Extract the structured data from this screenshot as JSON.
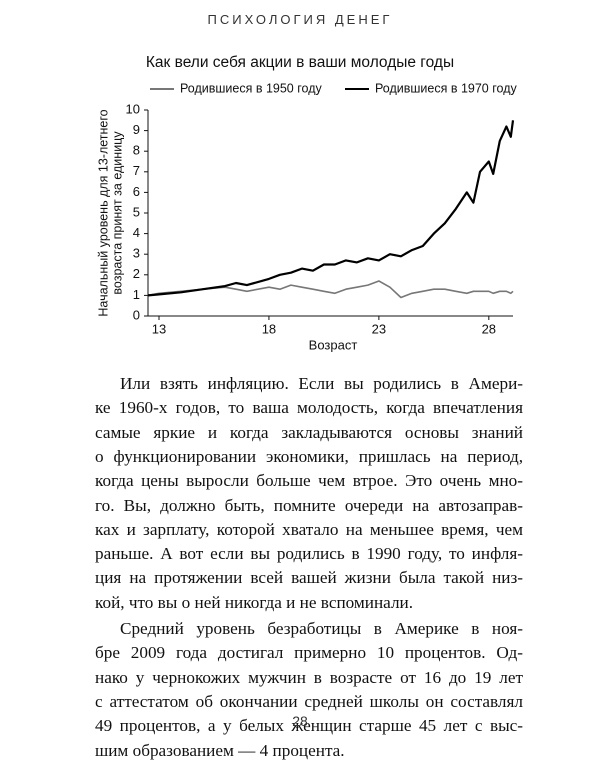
{
  "header": {
    "title": "ПСИХОЛОГИЯ ДЕНЕГ"
  },
  "chart_data": {
    "type": "line",
    "title": "Как вели себя акции в ваши молодые годы",
    "xlabel": "Возраст",
    "ylabel": [
      "Начальный уровень для 13-летнего",
      "возраста принят за единицу"
    ],
    "x": [
      12.5,
      13,
      14,
      15,
      16,
      16.5,
      17,
      18,
      18.5,
      19,
      19.5,
      20,
      20.5,
      21,
      21.5,
      22,
      22.5,
      23,
      23.5,
      24,
      24.5,
      25,
      25.5,
      26,
      26.5,
      27,
      27.3,
      27.6,
      28,
      28.2,
      28.5,
      28.8,
      29.0,
      29.1
    ],
    "series": [
      {
        "name": "Родившиеся в 1950 году",
        "color": "#777777",
        "values": [
          1.0,
          1.1,
          1.2,
          1.3,
          1.4,
          1.3,
          1.2,
          1.4,
          1.3,
          1.5,
          1.4,
          1.3,
          1.2,
          1.1,
          1.3,
          1.4,
          1.5,
          1.7,
          1.4,
          0.9,
          1.1,
          1.2,
          1.3,
          1.3,
          1.2,
          1.1,
          1.2,
          1.2,
          1.2,
          1.1,
          1.2,
          1.2,
          1.1,
          1.2
        ]
      },
      {
        "name": "Родившиеся в 1970 году",
        "color": "#000000",
        "values": [
          1.0,
          1.05,
          1.15,
          1.3,
          1.45,
          1.6,
          1.5,
          1.8,
          2.0,
          2.1,
          2.3,
          2.2,
          2.5,
          2.5,
          2.7,
          2.6,
          2.8,
          2.7,
          3.0,
          2.9,
          3.2,
          3.4,
          4.0,
          4.5,
          5.2,
          6.0,
          5.5,
          7.0,
          7.5,
          6.9,
          8.5,
          9.2,
          8.7,
          9.5
        ]
      }
    ],
    "xlim": [
      12.5,
      29.1
    ],
    "xticks": [
      13,
      18,
      23,
      28
    ],
    "ylim": [
      0,
      10
    ],
    "yticks": [
      0,
      1,
      2,
      3,
      4,
      5,
      6,
      7,
      8,
      9,
      10
    ],
    "legend": "top"
  },
  "body": {
    "paragraphs": [
      [
        "Или взять инфляцию. Если вы родились в Амери-",
        "ке 1960-х годов, то ваша молодость, когда впечатления",
        "самые яркие и когда закладываются основы знаний",
        "о функционировании экономики, пришлась на период,",
        "когда цены выросли больше чем втрое. Это очень мно-",
        "го. Вы, должно быть, помните очереди на автозаправ-",
        "ках и зарплату, которой хватало на меньшее время, чем",
        "раньше. А вот если вы родились в 1990 году, то инфля-",
        "ция на протяжении всей вашей жизни была такой низ-",
        "кой, что вы о ней никогда и не вспоминали."
      ],
      [
        "Средний уровень безработицы в Америке в ноя-",
        "бре 2009 года достигал примерно 10 процентов. Од-",
        "нако у чернокожих мужчин в возрасте от 16 до 19 лет",
        "с аттестатом об окончании средней школы он составлял",
        "49 процентов, а у белых женщин старше 45 лет с выс-",
        "шим образованием — 4 процента."
      ]
    ]
  },
  "page_number": "28"
}
